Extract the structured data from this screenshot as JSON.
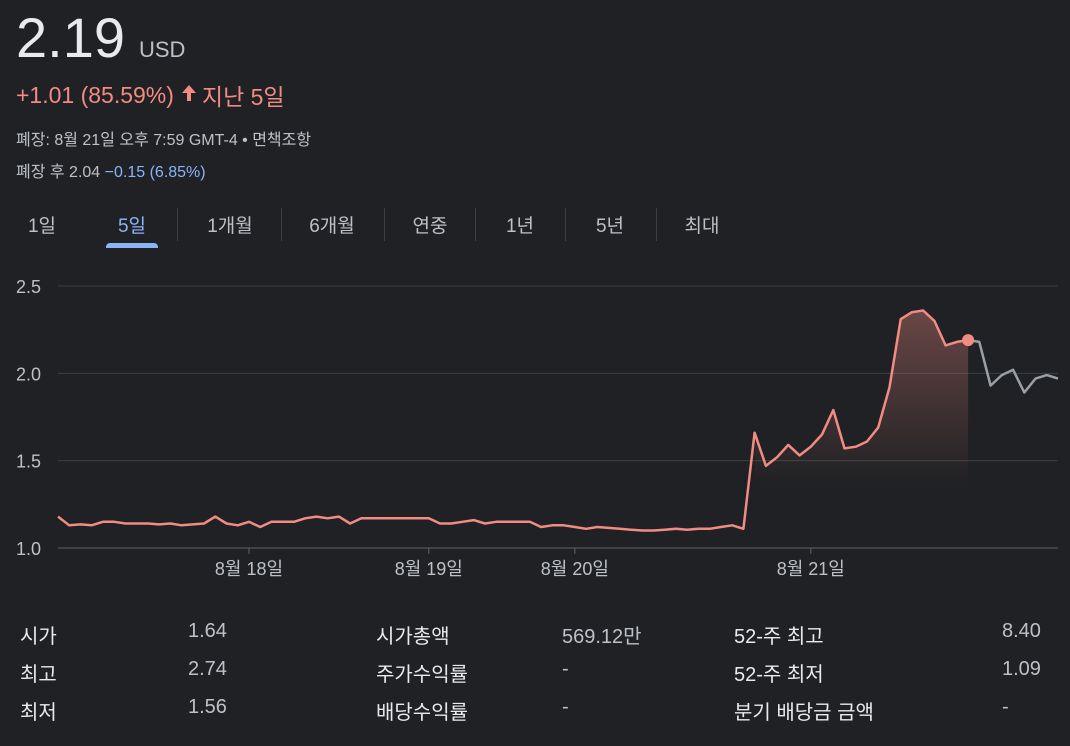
{
  "quote": {
    "price": "2.19",
    "currency": "USD",
    "change": "+1.01 (85.59%)",
    "change_arrow": "🡑",
    "period": "지난 5일",
    "close_info": "폐장: 8월 21일 오후 7:59 GMT-4 • 면책조항",
    "after_hours_label": "폐장 후 2.04",
    "after_hours_change": "−0.15 (6.85%)"
  },
  "tabs": [
    {
      "label": "1일"
    },
    {
      "label": "5일",
      "active": true
    },
    {
      "label": "1개월"
    },
    {
      "label": "6개월"
    },
    {
      "label": "연중"
    },
    {
      "label": "1년"
    },
    {
      "label": "5년"
    },
    {
      "label": "최대"
    }
  ],
  "colors": {
    "line": "#f28b82",
    "after_hours_line": "#9aa0a6",
    "accent": "#8ab4f8",
    "grid": "#3c4043"
  },
  "chart_data": {
    "type": "line",
    "y_ticks": [
      "2.5",
      "2.0",
      "1.5",
      "1.0"
    ],
    "ylim": [
      1.0,
      2.5
    ],
    "x_tick_labels": [
      "8월 18일",
      "8월 19일",
      "8월 20일",
      "8월 21일"
    ],
    "x_tick_index": [
      17,
      33,
      46,
      67
    ],
    "grid": true,
    "series": [
      {
        "values": [
          1.18,
          1.13,
          1.135,
          1.13,
          1.15,
          1.15,
          1.14,
          1.14,
          1.14,
          1.135,
          1.14,
          1.13,
          1.135,
          1.14,
          1.18,
          1.14,
          1.13,
          1.15,
          1.12,
          1.15,
          1.15,
          1.15,
          1.17,
          1.18,
          1.17,
          1.18,
          1.14,
          1.17,
          1.17,
          1.17,
          1.17,
          1.17,
          1.17,
          1.17,
          1.14,
          1.14,
          1.15,
          1.16,
          1.14,
          1.15,
          1.15,
          1.15,
          1.15,
          1.12,
          1.13,
          1.13,
          1.12,
          1.11,
          1.12,
          1.115,
          1.11,
          1.105,
          1.1,
          1.1,
          1.105,
          1.11,
          1.105,
          1.11,
          1.11,
          1.12,
          1.13,
          1.11,
          1.66,
          1.47,
          1.52,
          1.59,
          1.53,
          1.58,
          1.65,
          1.79,
          1.57,
          1.58,
          1.61,
          1.69,
          1.92,
          2.31,
          2.35,
          2.36,
          2.3,
          2.16,
          2.18,
          2.19
        ]
      },
      {
        "values": [
          2.19,
          2.18,
          1.93,
          1.99,
          2.02,
          1.89,
          1.97,
          1.99,
          1.97
        ]
      }
    ]
  },
  "stats": [
    {
      "label": "시가",
      "value": "1.64"
    },
    {
      "label": "최고",
      "value": "2.74"
    },
    {
      "label": "최저",
      "value": "1.56"
    },
    {
      "label": "시가총액",
      "value": "569.12만"
    },
    {
      "label": "주가수익률",
      "value": "-"
    },
    {
      "label": "배당수익률",
      "value": "-"
    },
    {
      "label": "52-주 최고",
      "value": "8.40"
    },
    {
      "label": "52-주 최저",
      "value": "1.09"
    },
    {
      "label": "분기 배당금 금액",
      "value": "-"
    }
  ]
}
